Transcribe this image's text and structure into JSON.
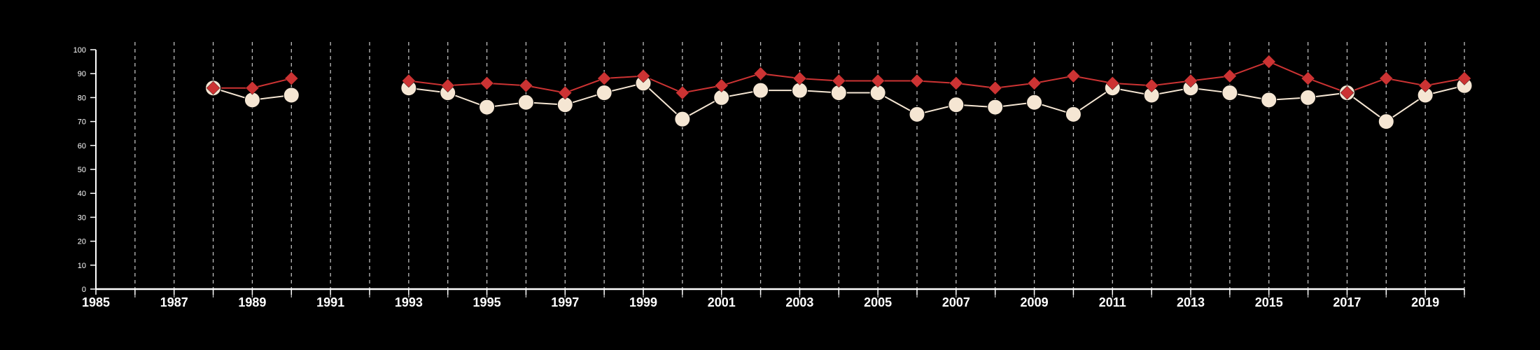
{
  "chart_data": {
    "type": "line",
    "title": "",
    "xlabel": "",
    "ylabel": "",
    "xlim": [
      1985,
      2020
    ],
    "ylim": [
      0,
      100
    ],
    "x_ticks": [
      1985,
      1987,
      1989,
      1991,
      1993,
      1995,
      1997,
      1999,
      2001,
      2003,
      2005,
      2007,
      2009,
      2011,
      2013,
      2015,
      2017,
      2019
    ],
    "y_ticks": [
      0,
      10,
      20,
      30,
      40,
      50,
      60,
      70,
      80,
      90,
      100
    ],
    "gridlines": "vertical-dashed",
    "legend": "none",
    "x": [
      1985,
      1986,
      1987,
      1988,
      1989,
      1990,
      1991,
      1992,
      1993,
      1994,
      1995,
      1996,
      1997,
      1998,
      1999,
      2000,
      2001,
      2002,
      2003,
      2004,
      2005,
      2006,
      2007,
      2008,
      2009,
      2010,
      2011,
      2012,
      2013,
      2014,
      2015,
      2016,
      2017,
      2018,
      2019,
      2020
    ],
    "series": [
      {
        "color": "#cc3333",
        "marker": "diamond",
        "values": [
          null,
          null,
          null,
          84,
          84,
          88,
          null,
          null,
          87,
          85,
          86,
          85,
          82,
          88,
          89,
          82,
          85,
          90,
          88,
          87,
          87,
          87,
          86,
          84,
          86,
          89,
          86,
          85,
          87,
          89,
          95,
          88,
          82,
          88,
          85,
          88
        ]
      },
      {
        "color": "#f5e6d3",
        "marker": "circle",
        "values": [
          null,
          null,
          null,
          84,
          79,
          81,
          null,
          null,
          84,
          82,
          76,
          78,
          77,
          82,
          86,
          71,
          80,
          83,
          83,
          82,
          82,
          73,
          77,
          76,
          78,
          73,
          84,
          81,
          84,
          82,
          79,
          80,
          82,
          70,
          81,
          85
        ]
      }
    ]
  }
}
